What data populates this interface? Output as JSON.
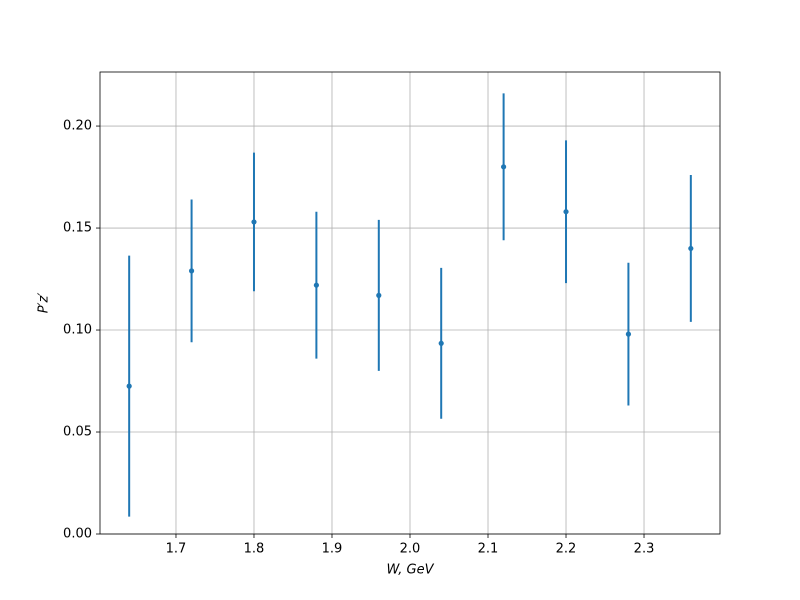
{
  "chart_data": {
    "type": "errorbar",
    "xlabel": "W, GeV",
    "ylabel": "P′z′",
    "series": [
      {
        "color": "#1f77b4",
        "x": [
          1.64,
          1.72,
          1.8,
          1.88,
          1.96,
          2.04,
          2.12,
          2.2,
          2.28,
          2.36
        ],
        "values": [
          0.0725,
          0.129,
          0.153,
          0.122,
          0.117,
          0.0935,
          0.18,
          0.158,
          0.098,
          0.14
        ],
        "errors": [
          0.064,
          0.035,
          0.034,
          0.036,
          0.037,
          0.037,
          0.036,
          0.035,
          0.035,
          0.036
        ]
      }
    ],
    "xlim": [
      1.6026,
      2.3974
    ],
    "ylim": [
      0,
      0.2265
    ],
    "xticks": [
      1.7,
      1.8,
      1.9,
      {
        "value": 2,
        "label": "2.0"
      },
      2.1,
      2.2,
      2.3
    ],
    "yticks": [
      {
        "value": 0,
        "label": "0.00"
      },
      0.05,
      {
        "value": 0.1,
        "label": "0.10"
      },
      0.15,
      {
        "value": 0.2,
        "label": "0.20"
      }
    ],
    "grid": true
  }
}
